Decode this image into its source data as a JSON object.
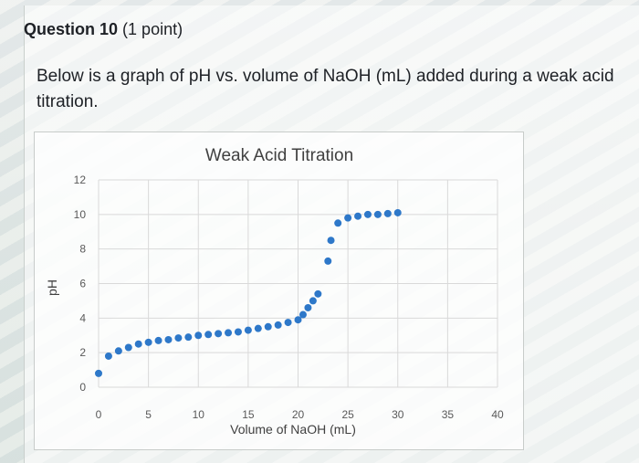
{
  "question": {
    "number": "Question 10",
    "points": "(1 point)",
    "text": "Below is a graph of pH vs. volume of NaOH (mL) added during a weak acid titration."
  },
  "chart_data": {
    "type": "scatter",
    "title": "Weak Acid Titration",
    "xlabel": "Volume of NaOH (mL)",
    "ylabel": "pH",
    "xlim": [
      0,
      40
    ],
    "ylim": [
      0,
      12
    ],
    "x_ticks": [
      0,
      5,
      10,
      15,
      20,
      25,
      30,
      35,
      40
    ],
    "y_ticks": [
      0,
      2,
      4,
      6,
      8,
      10,
      12
    ],
    "grid": true,
    "series": [
      {
        "color": "#2e78c9",
        "points": [
          {
            "x": 0,
            "y": 0.8
          },
          {
            "x": 1,
            "y": 1.8
          },
          {
            "x": 2,
            "y": 2.1
          },
          {
            "x": 3,
            "y": 2.3
          },
          {
            "x": 4,
            "y": 2.5
          },
          {
            "x": 5,
            "y": 2.6
          },
          {
            "x": 6,
            "y": 2.7
          },
          {
            "x": 7,
            "y": 2.75
          },
          {
            "x": 8,
            "y": 2.85
          },
          {
            "x": 9,
            "y": 2.9
          },
          {
            "x": 10,
            "y": 3.0
          },
          {
            "x": 11,
            "y": 3.05
          },
          {
            "x": 12,
            "y": 3.1
          },
          {
            "x": 13,
            "y": 3.15
          },
          {
            "x": 14,
            "y": 3.2
          },
          {
            "x": 15,
            "y": 3.3
          },
          {
            "x": 16,
            "y": 3.4
          },
          {
            "x": 17,
            "y": 3.5
          },
          {
            "x": 18,
            "y": 3.6
          },
          {
            "x": 19,
            "y": 3.75
          },
          {
            "x": 20,
            "y": 3.9
          },
          {
            "x": 20.5,
            "y": 4.2
          },
          {
            "x": 21,
            "y": 4.6
          },
          {
            "x": 21.5,
            "y": 5.0
          },
          {
            "x": 22,
            "y": 5.4
          },
          {
            "x": 23,
            "y": 7.3
          },
          {
            "x": 23.3,
            "y": 8.5
          },
          {
            "x": 24,
            "y": 9.5
          },
          {
            "x": 25,
            "y": 9.8
          },
          {
            "x": 26,
            "y": 9.9
          },
          {
            "x": 27,
            "y": 10.0
          },
          {
            "x": 28,
            "y": 10.0
          },
          {
            "x": 29,
            "y": 10.05
          },
          {
            "x": 30,
            "y": 10.1
          }
        ]
      }
    ]
  }
}
